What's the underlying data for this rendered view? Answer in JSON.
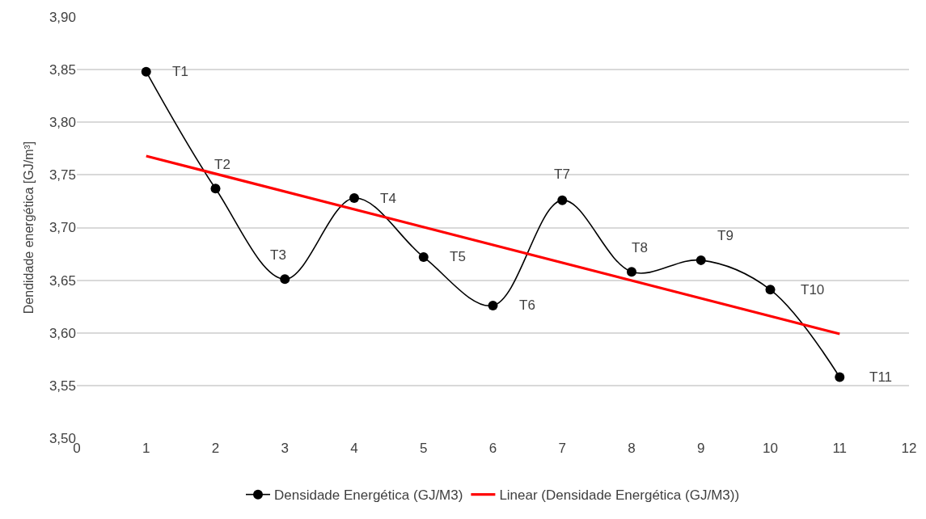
{
  "chart_data": {
    "type": "line",
    "ylabel": "Dendidade energética [GJ/m³]",
    "x": [
      1,
      2,
      3,
      4,
      5,
      6,
      7,
      8,
      9,
      10,
      11
    ],
    "series": [
      {
        "name": "Densidade Energética (GJ/M3)",
        "color": "#000000",
        "marker": "circle",
        "values": [
          3.848,
          3.737,
          3.651,
          3.728,
          3.672,
          3.626,
          3.726,
          3.658,
          3.669,
          3.641,
          3.558
        ]
      },
      {
        "name": "Linear (Densidade Energética (GJ/M3))",
        "color": "#ff0000",
        "type": "line",
        "marker": "none",
        "x": [
          1,
          11
        ],
        "values": [
          3.768,
          3.599
        ]
      }
    ],
    "annotations": [
      {
        "text": "T1",
        "x": 1,
        "y": 3.848
      },
      {
        "text": "T2",
        "x": 2,
        "y": 3.737
      },
      {
        "text": "T3",
        "x": 3,
        "y": 3.651
      },
      {
        "text": "T4",
        "x": 4,
        "y": 3.728
      },
      {
        "text": "T5",
        "x": 5,
        "y": 3.672
      },
      {
        "text": "T6",
        "x": 6,
        "y": 3.626
      },
      {
        "text": "T7",
        "x": 7,
        "y": 3.726
      },
      {
        "text": "T8",
        "x": 8,
        "y": 3.658
      },
      {
        "text": "T9",
        "x": 9,
        "y": 3.669
      },
      {
        "text": "T10",
        "x": 10,
        "y": 3.641
      },
      {
        "text": "T11",
        "x": 11,
        "y": 3.558
      }
    ],
    "xlim": [
      0,
      12
    ],
    "xticks": [
      0,
      1,
      2,
      3,
      4,
      5,
      6,
      7,
      8,
      9,
      10,
      11,
      12
    ],
    "ylim": [
      3.5,
      3.9
    ],
    "yticks": [
      {
        "value": 3.5,
        "label": "3,50"
      },
      {
        "value": 3.55,
        "label": "3,55"
      },
      {
        "value": 3.6,
        "label": "3,60"
      },
      {
        "value": 3.65,
        "label": "3,65"
      },
      {
        "value": 3.7,
        "label": "3,70"
      },
      {
        "value": 3.75,
        "label": "3,75"
      },
      {
        "value": 3.8,
        "label": "3,80"
      },
      {
        "value": 3.85,
        "label": "3,85"
      },
      {
        "value": 3.9,
        "label": "3,90"
      }
    ],
    "grid": "y",
    "legend": "bottom"
  }
}
